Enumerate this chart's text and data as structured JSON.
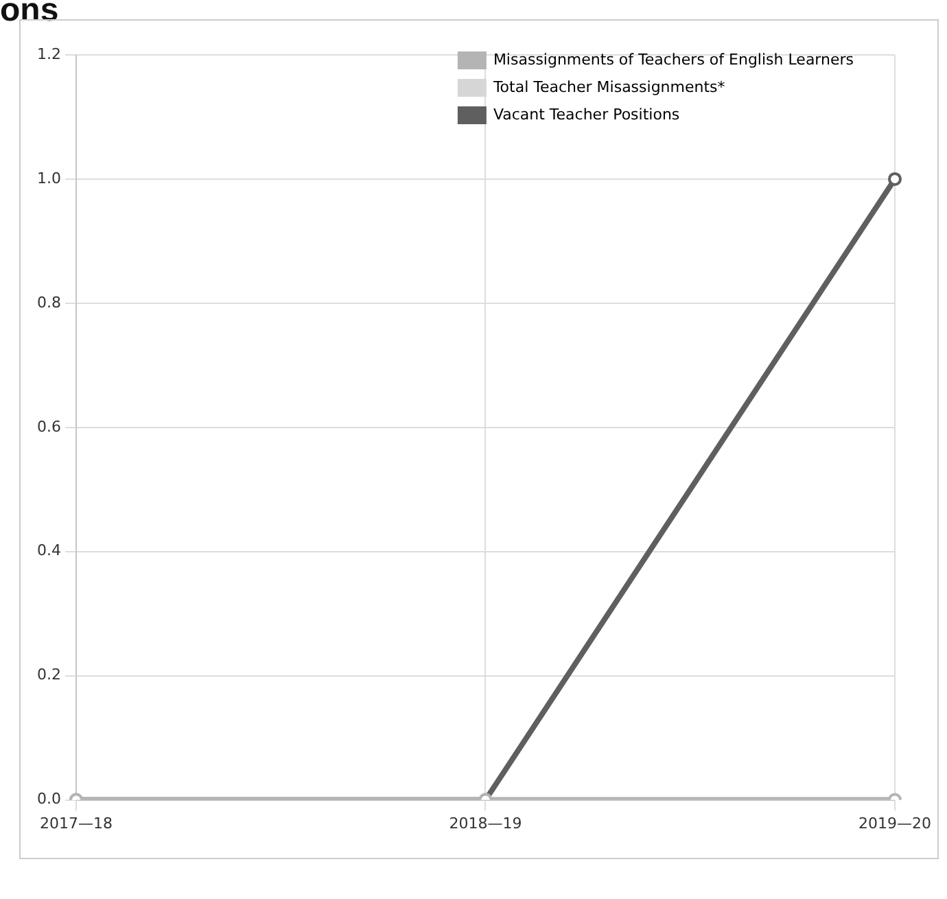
{
  "chart_data": {
    "type": "line",
    "title": "ons",
    "categories": [
      "2017—18",
      "2018—19",
      "2019—20"
    ],
    "series": [
      {
        "name": "Misassignments of Teachers of English Learners",
        "color": "#b4b4b4",
        "values": [
          0,
          0,
          0
        ]
      },
      {
        "name": "Total Teacher Misassignments*",
        "color": "#d6d6d6",
        "values": [
          0,
          0,
          0
        ]
      },
      {
        "name": "Vacant Teacher Positions",
        "color": "#5f5f5f",
        "values": [
          0,
          0,
          1
        ]
      }
    ],
    "ylim": [
      0,
      1.2
    ],
    "yticks": [
      {
        "value": 0,
        "label": "0.0"
      },
      {
        "value": 0.2,
        "label": "0.2"
      },
      {
        "value": 0.4,
        "label": "0.4"
      },
      {
        "value": 0.6,
        "label": "0.6"
      },
      {
        "value": 0.8,
        "label": "0.8"
      },
      {
        "value": 1,
        "label": "1.0"
      },
      {
        "value": 1.2,
        "label": "1.2"
      }
    ],
    "grid": true,
    "legend": "top right",
    "marker": "circle",
    "line_style": "solid"
  }
}
